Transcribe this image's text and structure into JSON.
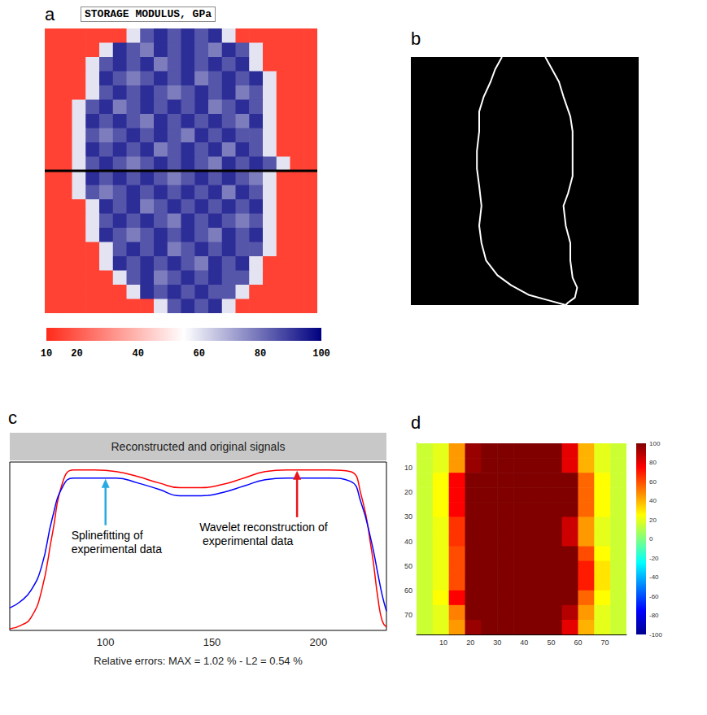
{
  "chart_data": [
    {
      "panel_label": "a",
      "type": "heatmap",
      "title": "STORAGE MODULUS, GPa",
      "xlim": [
        0,
        20
      ],
      "ylim": [
        0,
        20
      ],
      "tick_labels": false,
      "profile_y": 10,
      "colorbar": {
        "range": [
          10,
          100
        ],
        "ticks": [
          10,
          20,
          40,
          60,
          80,
          100
        ]
      },
      "cells": [
        [
          15,
          15,
          15,
          15,
          15,
          15,
          60,
          85,
          92,
          85,
          92,
          85,
          92,
          60,
          15,
          15,
          15,
          15,
          15,
          15
        ],
        [
          15,
          15,
          15,
          15,
          60,
          92,
          85,
          78,
          92,
          85,
          92,
          85,
          78,
          92,
          85,
          60,
          15,
          15,
          15,
          15
        ],
        [
          15,
          15,
          15,
          60,
          85,
          92,
          85,
          92,
          78,
          85,
          92,
          85,
          92,
          85,
          92,
          60,
          15,
          15,
          15,
          15
        ],
        [
          15,
          15,
          15,
          60,
          92,
          85,
          78,
          85,
          92,
          85,
          92,
          78,
          85,
          92,
          85,
          92,
          60,
          15,
          15,
          15
        ],
        [
          15,
          15,
          15,
          60,
          85,
          92,
          85,
          92,
          85,
          78,
          85,
          92,
          85,
          92,
          78,
          85,
          60,
          15,
          15,
          15
        ],
        [
          15,
          15,
          60,
          85,
          92,
          78,
          85,
          92,
          85,
          92,
          85,
          92,
          78,
          85,
          92,
          85,
          60,
          15,
          15,
          15
        ],
        [
          15,
          15,
          60,
          92,
          85,
          92,
          85,
          78,
          92,
          85,
          92,
          85,
          92,
          85,
          78,
          92,
          60,
          15,
          15,
          15
        ],
        [
          15,
          15,
          60,
          85,
          78,
          85,
          92,
          85,
          92,
          85,
          78,
          92,
          85,
          92,
          85,
          85,
          60,
          15,
          15,
          15
        ],
        [
          15,
          15,
          60,
          92,
          85,
          92,
          85,
          92,
          78,
          85,
          92,
          85,
          92,
          78,
          92,
          85,
          60,
          15,
          15,
          15
        ],
        [
          15,
          15,
          60,
          85,
          92,
          85,
          78,
          85,
          92,
          85,
          92,
          85,
          78,
          92,
          85,
          92,
          85,
          60,
          15,
          15
        ],
        [
          15,
          15,
          60,
          92,
          85,
          92,
          85,
          92,
          85,
          78,
          85,
          92,
          85,
          92,
          85,
          78,
          60,
          15,
          15,
          15
        ],
        [
          15,
          15,
          60,
          85,
          78,
          85,
          92,
          85,
          92,
          85,
          92,
          85,
          92,
          78,
          92,
          85,
          60,
          15,
          15,
          15
        ],
        [
          15,
          15,
          15,
          60,
          92,
          85,
          92,
          78,
          85,
          92,
          85,
          92,
          85,
          92,
          85,
          92,
          60,
          15,
          15,
          15
        ],
        [
          15,
          15,
          15,
          60,
          85,
          92,
          85,
          92,
          85,
          78,
          92,
          85,
          92,
          85,
          78,
          85,
          60,
          15,
          15,
          15
        ],
        [
          15,
          15,
          15,
          60,
          92,
          85,
          78,
          85,
          92,
          85,
          92,
          85,
          78,
          92,
          85,
          92,
          60,
          15,
          15,
          15
        ],
        [
          15,
          15,
          15,
          15,
          60,
          85,
          92,
          85,
          92,
          78,
          85,
          92,
          85,
          92,
          85,
          85,
          60,
          15,
          15,
          15
        ],
        [
          15,
          15,
          15,
          15,
          60,
          92,
          85,
          92,
          85,
          92,
          85,
          78,
          92,
          85,
          92,
          60,
          15,
          15,
          15,
          15
        ],
        [
          15,
          15,
          15,
          15,
          15,
          60,
          85,
          92,
          78,
          85,
          92,
          85,
          92,
          85,
          85,
          60,
          15,
          15,
          15,
          15
        ],
        [
          15,
          15,
          15,
          15,
          15,
          15,
          60,
          92,
          85,
          92,
          85,
          92,
          85,
          85,
          60,
          15,
          15,
          15,
          15,
          15
        ],
        [
          15,
          15,
          15,
          15,
          15,
          15,
          15,
          15,
          60,
          85,
          92,
          85,
          92,
          60,
          15,
          15,
          15,
          15,
          15,
          15
        ]
      ]
    },
    {
      "panel_label": "b",
      "type": "line",
      "color": "#ffffff",
      "xlim": [
        0,
        100
      ],
      "ylim": [
        0,
        100
      ],
      "tick_labels": false,
      "x": [
        40,
        37,
        35,
        32,
        30,
        30,
        29,
        29,
        30,
        31,
        30,
        31,
        33,
        38,
        44,
        52,
        60,
        68,
        69,
        72,
        73,
        71,
        70,
        70,
        68,
        67,
        69,
        71,
        71,
        71,
        70,
        67,
        65,
        62,
        59
      ],
      "y": [
        0,
        5,
        10,
        16,
        22,
        30,
        38,
        45,
        52,
        60,
        68,
        75,
        82,
        88,
        92,
        96,
        98,
        100,
        99,
        97,
        93,
        89,
        82,
        75,
        68,
        60,
        55,
        48,
        38,
        30,
        24,
        16,
        10,
        5,
        0
      ]
    },
    {
      "panel_label": "c",
      "type": "line",
      "title": "Reconstructed and original signals",
      "xlim": [
        55,
        232
      ],
      "ylim": [
        0,
        1.05
      ],
      "xticks": [
        100,
        150,
        200
      ],
      "tick_labels": "x",
      "x": [
        55,
        60,
        65,
        70,
        75,
        80,
        85,
        95,
        105,
        115,
        125,
        135,
        145,
        155,
        165,
        175,
        185,
        195,
        205,
        215,
        220,
        225,
        228,
        230,
        232
      ],
      "series": [
        {
          "color": "#ff0000",
          "values": [
            0.01,
            0.03,
            0.08,
            0.25,
            0.6,
            0.93,
            1.0,
            1.0,
            0.99,
            0.96,
            0.92,
            0.89,
            0.89,
            0.91,
            0.95,
            0.99,
            1.0,
            1.0,
            1.0,
            0.99,
            0.85,
            0.5,
            0.2,
            0.06,
            0.02
          ]
        },
        {
          "color": "#0000ff",
          "values": [
            0.14,
            0.18,
            0.25,
            0.4,
            0.7,
            0.9,
            0.95,
            0.95,
            0.95,
            0.92,
            0.88,
            0.84,
            0.84,
            0.86,
            0.9,
            0.94,
            0.95,
            0.95,
            0.95,
            0.93,
            0.8,
            0.55,
            0.35,
            0.22,
            0.12
          ]
        }
      ],
      "annotations": [
        {
          "text": "Splinefitting of experimental data",
          "x": 100,
          "y": 0.95,
          "color": "#29abe2"
        },
        {
          "text": "Wavelet reconstruction of experimental data",
          "x": 190,
          "y": 1.0,
          "color": "#e8141c"
        }
      ],
      "caption": "Relative errors: MAX = 1.02 % - L2 = 0.54 %"
    },
    {
      "panel_label": "d",
      "type": "heatmap",
      "xlim": [
        0,
        78
      ],
      "ylim": [
        0,
        78
      ],
      "xticks": [
        10,
        20,
        30,
        40,
        50,
        60,
        70
      ],
      "yticks": [
        10,
        20,
        30,
        40,
        50,
        60,
        70
      ],
      "colorbar": {
        "range": [
          -100,
          100
        ],
        "ticks": [
          -100,
          -80,
          -60,
          -40,
          -20,
          0,
          20,
          40,
          60,
          80,
          100
        ]
      },
      "x": [
        3,
        9,
        15,
        21,
        27,
        33,
        39,
        45,
        51,
        57,
        63,
        69,
        75
      ],
      "y": [
        3,
        9,
        15,
        21,
        27,
        33,
        39,
        45,
        51,
        57,
        63,
        69,
        75
      ],
      "cells": [
        [
          15,
          20,
          45,
          95,
          100,
          100,
          100,
          100,
          100,
          80,
          40,
          20,
          15
        ],
        [
          15,
          20,
          45,
          95,
          100,
          100,
          100,
          100,
          100,
          80,
          40,
          20,
          15
        ],
        [
          15,
          25,
          75,
          100,
          100,
          100,
          100,
          100,
          100,
          100,
          55,
          25,
          15
        ],
        [
          15,
          25,
          75,
          100,
          100,
          100,
          100,
          100,
          100,
          100,
          55,
          25,
          15
        ],
        [
          15,
          25,
          75,
          100,
          100,
          100,
          100,
          100,
          100,
          100,
          55,
          25,
          15
        ],
        [
          15,
          22,
          65,
          100,
          100,
          100,
          100,
          100,
          100,
          85,
          45,
          20,
          15
        ],
        [
          15,
          22,
          65,
          100,
          100,
          100,
          100,
          100,
          100,
          85,
          45,
          20,
          15
        ],
        [
          15,
          22,
          60,
          100,
          100,
          100,
          100,
          100,
          100,
          100,
          60,
          25,
          15
        ],
        [
          15,
          22,
          60,
          100,
          100,
          100,
          100,
          100,
          100,
          100,
          70,
          30,
          15
        ],
        [
          15,
          22,
          60,
          100,
          100,
          100,
          100,
          100,
          100,
          100,
          70,
          30,
          15
        ],
        [
          15,
          25,
          75,
          100,
          100,
          100,
          100,
          100,
          100,
          100,
          55,
          25,
          15
        ],
        [
          15,
          20,
          50,
          100,
          100,
          100,
          100,
          100,
          100,
          90,
          45,
          20,
          15
        ],
        [
          15,
          20,
          45,
          95,
          100,
          100,
          100,
          100,
          100,
          80,
          40,
          20,
          15
        ]
      ]
    }
  ]
}
